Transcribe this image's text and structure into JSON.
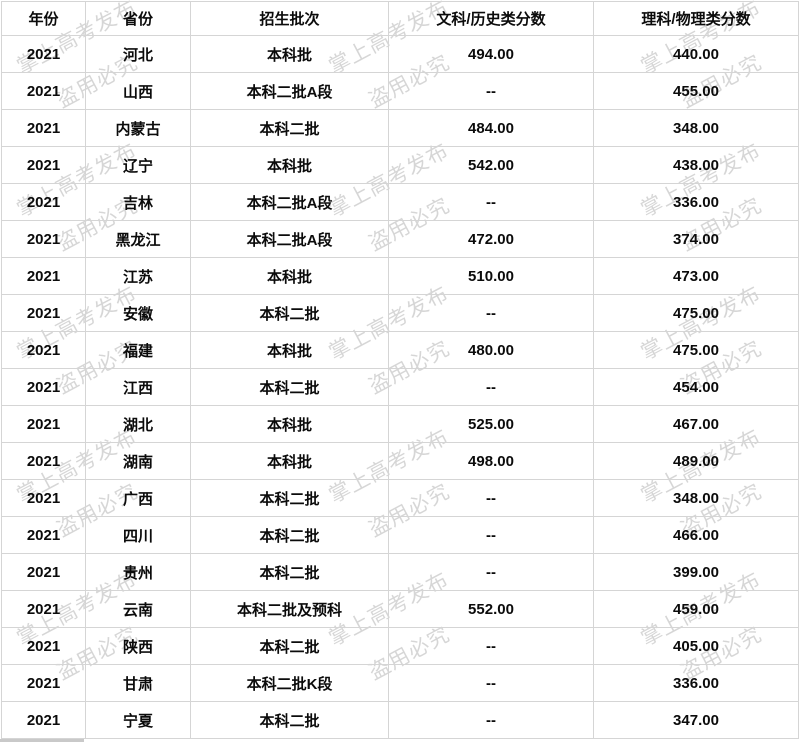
{
  "chart_data": {
    "type": "table",
    "columns": [
      "年份",
      "省份",
      "招生批次",
      "文科/历史类分数",
      "理科/物理类分数"
    ],
    "rows": [
      [
        "2021",
        "河北",
        "本科批",
        "494.00",
        "440.00"
      ],
      [
        "2021",
        "山西",
        "本科二批A段",
        "--",
        "455.00"
      ],
      [
        "2021",
        "内蒙古",
        "本科二批",
        "484.00",
        "348.00"
      ],
      [
        "2021",
        "辽宁",
        "本科批",
        "542.00",
        "438.00"
      ],
      [
        "2021",
        "吉林",
        "本科二批A段",
        "--",
        "336.00"
      ],
      [
        "2021",
        "黑龙江",
        "本科二批A段",
        "472.00",
        "374.00"
      ],
      [
        "2021",
        "江苏",
        "本科批",
        "510.00",
        "473.00"
      ],
      [
        "2021",
        "安徽",
        "本科二批",
        "--",
        "475.00"
      ],
      [
        "2021",
        "福建",
        "本科批",
        "480.00",
        "475.00"
      ],
      [
        "2021",
        "江西",
        "本科二批",
        "--",
        "454.00"
      ],
      [
        "2021",
        "湖北",
        "本科批",
        "525.00",
        "467.00"
      ],
      [
        "2021",
        "湖南",
        "本科批",
        "498.00",
        "489.00"
      ],
      [
        "2021",
        "广西",
        "本科二批",
        "--",
        "348.00"
      ],
      [
        "2021",
        "四川",
        "本科二批",
        "--",
        "466.00"
      ],
      [
        "2021",
        "贵州",
        "本科二批",
        "--",
        "399.00"
      ],
      [
        "2021",
        "云南",
        "本科二批及预科",
        "552.00",
        "459.00"
      ],
      [
        "2021",
        "陕西",
        "本科二批",
        "--",
        "405.00"
      ],
      [
        "2021",
        "甘肃",
        "本科二批K段",
        "--",
        "336.00"
      ],
      [
        "2021",
        "宁夏",
        "本科二批",
        "--",
        "347.00"
      ]
    ]
  },
  "watermark": {
    "line1": "掌上高考发布",
    "line2": "盗用必究"
  },
  "colors": {
    "grid_line": "#d5d5d5",
    "text": "#0b0b0b",
    "watermark": "rgba(0,0,0,0.16)",
    "scrollbar_fragment": "#c9c9c9"
  }
}
